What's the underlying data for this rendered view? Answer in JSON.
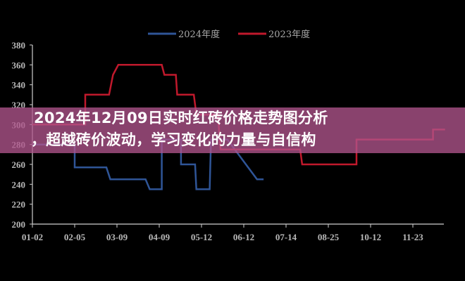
{
  "title": {
    "line1": "2024年12月09日实时红砖价格走势图分析",
    "line2": "，超越砖价波动，学习变化的力量与自信构"
  },
  "chart_data": {
    "type": "line",
    "x_type": "date MM-DD",
    "x_ticks": [
      "01-02",
      "02-05",
      "03-09",
      "04-09",
      "05-12",
      "06-12",
      "07-14",
      "08-25",
      "10-12",
      "11-23"
    ],
    "y_ticks": [
      200,
      220,
      240,
      260,
      280,
      300,
      320,
      340,
      360,
      380
    ],
    "ylim": [
      200,
      380
    ],
    "grid": false,
    "legend": "top-center",
    "series": [
      {
        "name": "2024年度",
        "color": "#2f5597",
        "points": [
          [
            "01-02",
            280
          ],
          [
            "02-05",
            280
          ],
          [
            "02-05",
            257
          ],
          [
            "03-01",
            257
          ],
          [
            "03-04",
            245
          ],
          [
            "03-30",
            245
          ],
          [
            "04-02",
            235
          ],
          [
            "04-11",
            235
          ],
          [
            "04-11",
            285
          ],
          [
            "04-26",
            285
          ],
          [
            "04-26",
            260
          ],
          [
            "05-07",
            260
          ],
          [
            "05-08",
            235
          ],
          [
            "05-18",
            235
          ],
          [
            "05-19",
            285
          ],
          [
            "05-31",
            285
          ],
          [
            "06-22",
            245
          ],
          [
            "06-27",
            245
          ]
        ]
      },
      {
        "name": "2023年度",
        "color": "#c0192c",
        "points": [
          [
            "01-02",
            300
          ],
          [
            "02-13",
            300
          ],
          [
            "02-13",
            330
          ],
          [
            "03-03",
            330
          ],
          [
            "03-06",
            350
          ],
          [
            "03-10",
            360
          ],
          [
            "04-11",
            360
          ],
          [
            "04-13",
            350
          ],
          [
            "04-22",
            350
          ],
          [
            "04-23",
            330
          ],
          [
            "05-06",
            330
          ],
          [
            "05-08",
            310
          ],
          [
            "05-24",
            310
          ],
          [
            "05-26",
            275
          ],
          [
            "07-28",
            275
          ],
          [
            "07-30",
            260
          ],
          [
            "09-26",
            260
          ],
          [
            "09-26",
            285
          ],
          [
            "12-13",
            285
          ],
          [
            "12-13",
            295
          ],
          [
            "12-25",
            295
          ]
        ]
      }
    ]
  }
}
